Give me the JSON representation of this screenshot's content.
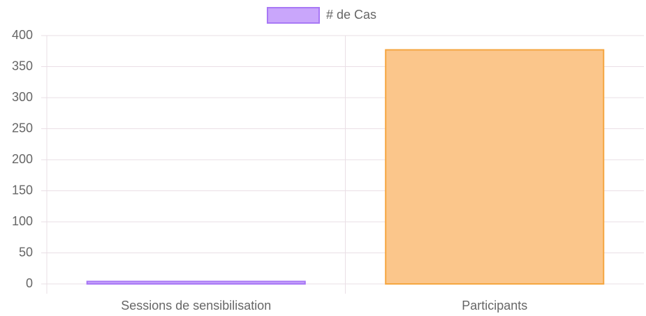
{
  "chart_data": {
    "type": "bar",
    "categories": [
      "Sessions de sensibilisation",
      "Participants"
    ],
    "series": [
      {
        "name": "# de Cas",
        "values": [
          4,
          377
        ],
        "colors": [
          "#c9a6fb",
          "#fbc68b"
        ],
        "border_colors": [
          "#a878f5",
          "#f5a640"
        ]
      }
    ],
    "ylim": [
      0,
      400
    ],
    "yticks": [
      0,
      50,
      100,
      150,
      200,
      250,
      300,
      350,
      400
    ],
    "grid": true
  }
}
